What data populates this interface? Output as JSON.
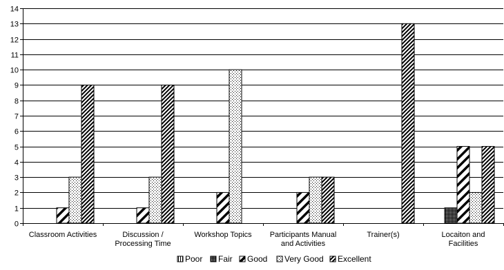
{
  "chart_data": {
    "type": "bar",
    "categories": [
      [
        "Classroom Activities"
      ],
      [
        "Discussion /",
        "Processing Time"
      ],
      [
        "Workshop Topics"
      ],
      [
        "Participants Manual",
        "and Activities"
      ],
      [
        "Trainer(s)"
      ],
      [
        "Locaiton and",
        "Facilities"
      ]
    ],
    "series": [
      {
        "name": "Poor",
        "values": [
          0,
          0,
          0,
          0,
          0,
          0
        ],
        "pattern": "vertical",
        "color": "#000000"
      },
      {
        "name": "Fair",
        "values": [
          0,
          0,
          0,
          0,
          0,
          1
        ],
        "pattern": "dense",
        "color": "#000000"
      },
      {
        "name": "Good",
        "values": [
          1,
          1,
          2,
          2,
          0,
          5
        ],
        "pattern": "diag-wide",
        "color": "#000000"
      },
      {
        "name": "Very Good",
        "values": [
          3,
          3,
          10,
          3,
          0,
          2
        ],
        "pattern": "dots",
        "color": "#000000"
      },
      {
        "name": "Excellent",
        "values": [
          9,
          9,
          0,
          3,
          13,
          5
        ],
        "pattern": "diag-dense",
        "color": "#000000"
      }
    ],
    "ylim": [
      0,
      14
    ],
    "yticks": [
      0,
      1,
      2,
      3,
      4,
      5,
      6,
      7,
      8,
      9,
      10,
      11,
      12,
      13,
      14
    ],
    "grid": true,
    "legend": "bottom",
    "title": "",
    "xlabel": "",
    "ylabel": ""
  }
}
